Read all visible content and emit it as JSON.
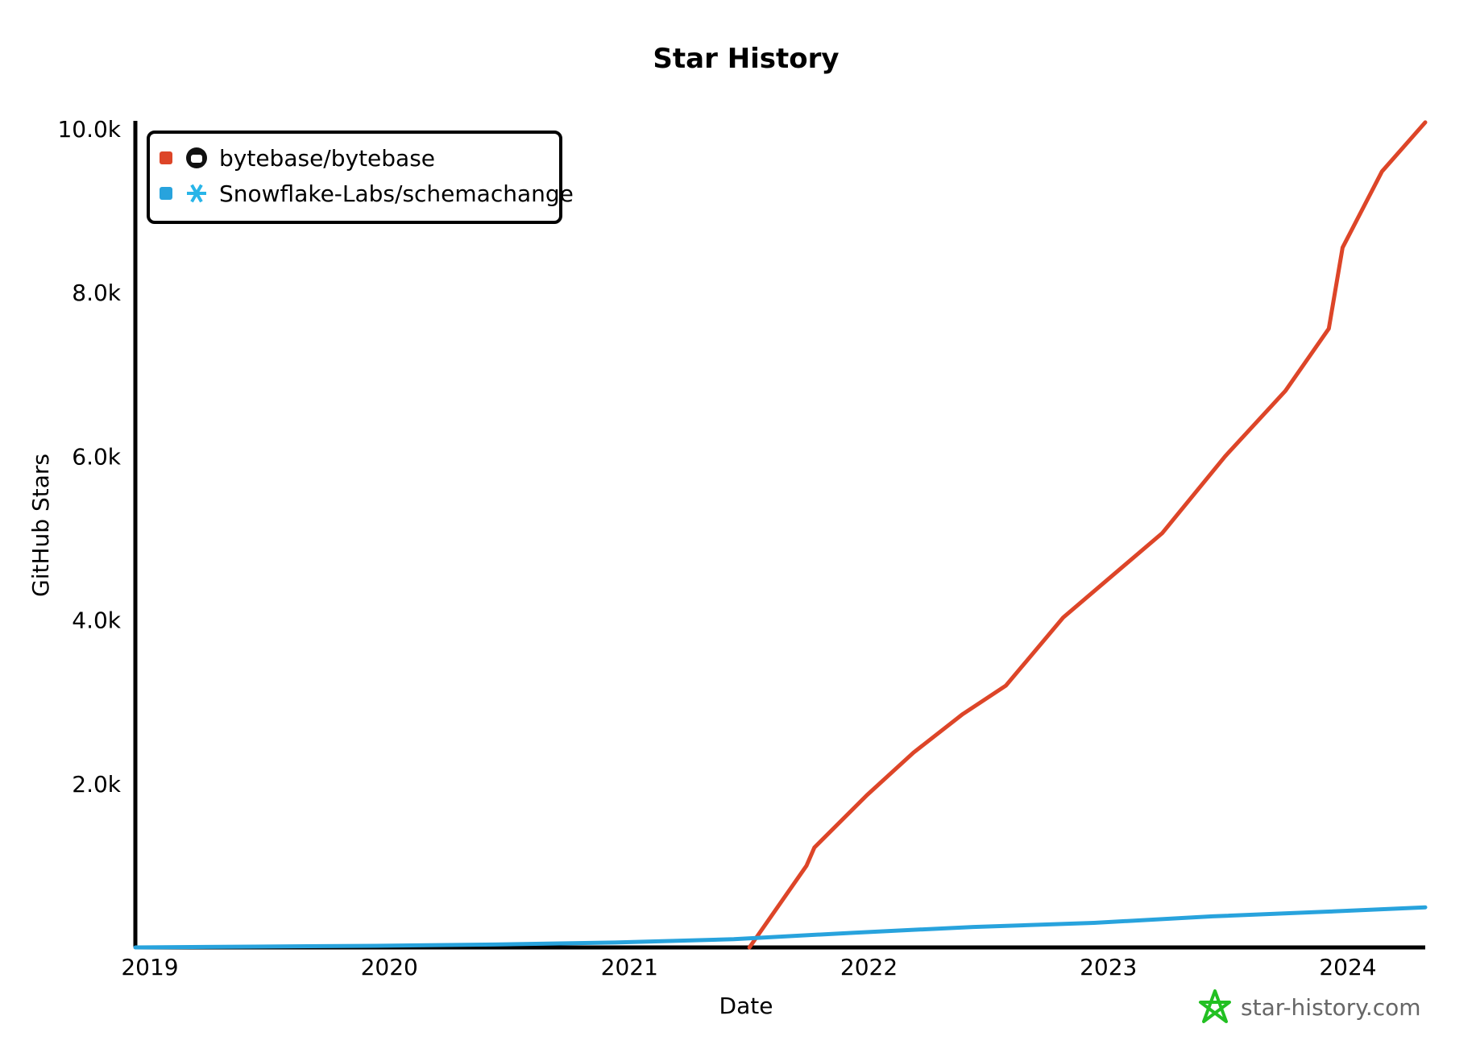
{
  "chart_data": {
    "type": "line",
    "title": "Star History",
    "xlabel": "Date",
    "ylabel": "GitHub Stars",
    "xlim": [
      "2019-01-01",
      "2024-05-20"
    ],
    "ylim": [
      0,
      10000
    ],
    "x_ticks": [
      {
        "label": "2019",
        "date": "2019-01-01"
      },
      {
        "label": "2020",
        "date": "2020-01-01"
      },
      {
        "label": "2021",
        "date": "2021-01-01"
      },
      {
        "label": "2022",
        "date": "2022-01-01"
      },
      {
        "label": "2023",
        "date": "2023-01-01"
      },
      {
        "label": "2024",
        "date": "2024-01-01"
      }
    ],
    "y_ticks": [
      {
        "label": "2.0k",
        "value": 2000
      },
      {
        "label": "4.0k",
        "value": 4000
      },
      {
        "label": "6.0k",
        "value": 6000
      },
      {
        "label": "8.0k",
        "value": 8000
      },
      {
        "label": "10.0k",
        "value": 10000
      }
    ],
    "grid": false,
    "legend_position": "top-left",
    "series": [
      {
        "name": "bytebase/bytebase",
        "color": "#dd4528",
        "icon": "github-icon",
        "points": [
          [
            "2021-07-25",
            0
          ],
          [
            "2021-10-20",
            1000
          ],
          [
            "2021-11-01",
            1220
          ],
          [
            "2022-01-20",
            1860
          ],
          [
            "2022-04-01",
            2380
          ],
          [
            "2022-06-15",
            2850
          ],
          [
            "2022-08-20",
            3200
          ],
          [
            "2022-11-15",
            4030
          ],
          [
            "2023-01-20",
            4480
          ],
          [
            "2023-04-15",
            5060
          ],
          [
            "2023-07-20",
            6000
          ],
          [
            "2023-10-20",
            6800
          ],
          [
            "2023-12-25",
            7560
          ],
          [
            "2024-01-15",
            8550
          ],
          [
            "2024-03-15",
            9480
          ],
          [
            "2024-05-20",
            10080
          ]
        ]
      },
      {
        "name": "Snowflake-Labs/schemachange",
        "color": "#28a3dd",
        "icon": "snowflake-icon",
        "points": [
          [
            "2019-01-01",
            0
          ],
          [
            "2019-07-01",
            10
          ],
          [
            "2020-01-01",
            20
          ],
          [
            "2020-07-01",
            35
          ],
          [
            "2021-01-01",
            60
          ],
          [
            "2021-07-01",
            100
          ],
          [
            "2022-01-01",
            180
          ],
          [
            "2022-07-01",
            250
          ],
          [
            "2023-01-01",
            300
          ],
          [
            "2023-07-01",
            380
          ],
          [
            "2024-01-01",
            440
          ],
          [
            "2024-05-20",
            490
          ]
        ]
      }
    ]
  },
  "watermark": {
    "text": "star-history.com",
    "color": "#22c022"
  }
}
